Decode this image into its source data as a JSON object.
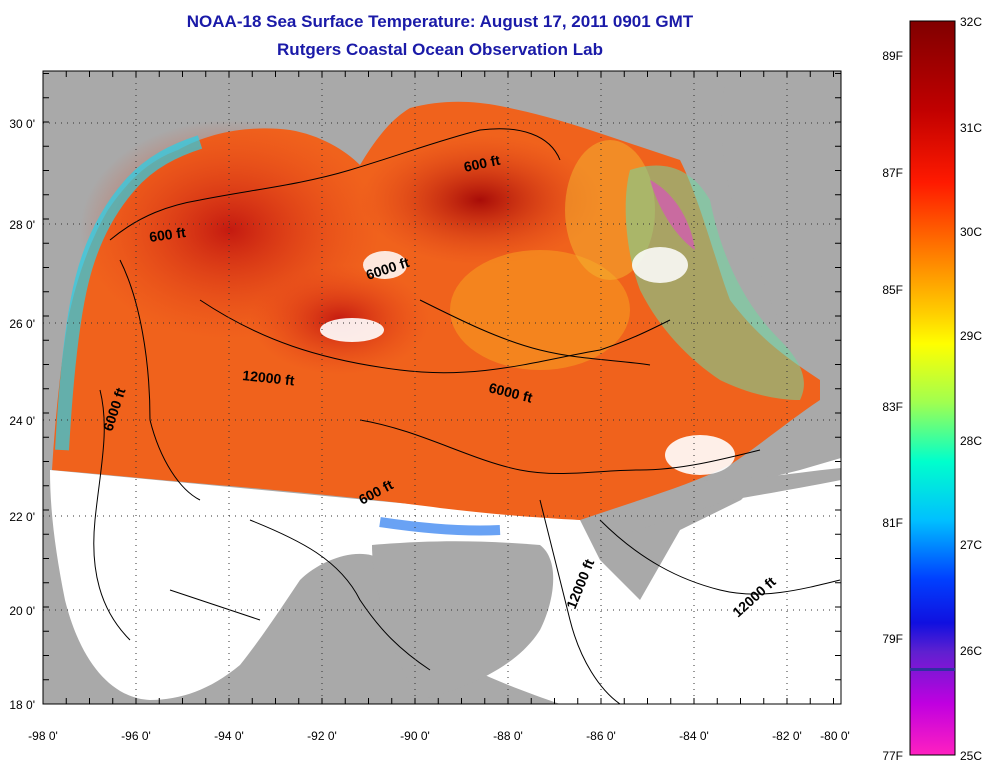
{
  "title": "NOAA-18 Sea Surface Temperature:  August 17, 2011 0901 GMT",
  "subtitle": "Rutgers Coastal Ocean Observation Lab",
  "longitude_ticks": [
    "-98 0'",
    "-96 0'",
    "-94 0'",
    "-92 0'",
    "-90 0'",
    "-88 0'",
    "-86 0'",
    "-84 0'",
    "-82 0'",
    "-80 0'"
  ],
  "latitude_ticks": [
    "30 0'",
    "28 0'",
    "26 0'",
    "24 0'",
    "22 0'",
    "20 0'",
    "18 0'"
  ],
  "bathymetry_contours": [
    {
      "label": "600 ft"
    },
    {
      "label": "600 ft"
    },
    {
      "label": "6000 ft"
    },
    {
      "label": "12000 ft"
    },
    {
      "label": "6000 ft"
    },
    {
      "label": "6000 ft"
    },
    {
      "label": "600 ft"
    },
    {
      "label": "12000 ft"
    },
    {
      "label": "12000 ft"
    }
  ],
  "colorbar": {
    "celsius_labels": [
      "32C",
      "31C",
      "30C",
      "29C",
      "28C",
      "27C",
      "26C",
      "25C"
    ],
    "fahrenheit_labels": [
      "89F",
      "87F",
      "85F",
      "83F",
      "81F",
      "79F",
      "77F"
    ],
    "gradient_colors": [
      "#800000",
      "#c00000",
      "#ff0000",
      "#ff6a00",
      "#ffb000",
      "#ffff00",
      "#80ff60",
      "#00ffff",
      "#00a0ff",
      "#0000ff",
      "#8000ff",
      "#ff00ff"
    ]
  },
  "colors": {
    "land": "#a9a9a9",
    "no_data_ocean": "#ffffff",
    "title": "#1a1aa8"
  }
}
